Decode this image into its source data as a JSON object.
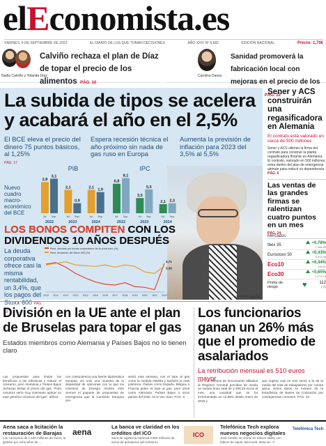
{
  "masthead": {
    "logo_pre": "el",
    "logo_red": "E",
    "logo_post": "conomista",
    "logo_tld": ".es",
    "date": "VIERNES, 9 DE SEPTIEMBRE DE 2022",
    "slogan": "EL DIARIO DE LOS QUE TOMAN DECISIONES",
    "issue": "AÑO XXIV Nº 5.682",
    "edition": "EDICIÓN NACIONAL",
    "price": "Precio: 1,70€"
  },
  "teasers": [
    {
      "caption": "Nadia Calviño y Yolanda Díaz",
      "headline": "Calviño rechaza el plan de Díaz de topar el precio de los alimentos",
      "page": "PÁG. 10"
    },
    {
      "caption": "Carolina Darias",
      "headline": "Sanidad promoverá la fabricación local con mejoras en el precio de los fármacos",
      "page": "PÁG. 12"
    }
  ],
  "main": {
    "title": "La subida de tipos se acelera y acabará el año en el 2,5%",
    "subs": [
      {
        "text": "El BCE eleva el precio del dinero 75 puntos básicos, al 1,25%",
        "page": "PÁG. 17"
      },
      {
        "text": "Espera recesión técnica el año próximo sin nada de gas ruso en Europa",
        "page": ""
      },
      {
        "text": "Aumenta la previsión de inflación para 2023 del 3,5% al 5,5%",
        "page": ""
      }
    ],
    "macro_label": "Nuevo cuadro macro-económico del BCE",
    "bonos_title_a": "LOS BONOS COMPITEN",
    "bonos_title_b": " CON LOS DIVIDENDOS 10 AÑOS DESPUÉS",
    "bonos_text": "La deuda corporativa ofrece casi la misma rentabilidad, un 3,4%, que los pagos del Stoxx 600",
    "bonos_page": "PÁG. 19",
    "photo_credit": "Christine Lagarde"
  },
  "chart_data": [
    {
      "type": "bar",
      "title": "PIB",
      "categories": [
        "2022",
        "2023",
        "2024"
      ],
      "series": [
        {
          "name": "Jul.",
          "values": [
            2.8,
            2.1,
            2.1
          ]
        },
        {
          "name": "Sep.",
          "values": [
            3.1,
            0.9,
            1.9
          ]
        }
      ],
      "tick_labels": [
        "Jul.",
        "Sep.",
        "Jul.",
        "Sep.",
        "Jul.",
        "Sep."
      ]
    },
    {
      "type": "bar",
      "title": "IPC",
      "categories": [
        "2022",
        "2023",
        "2024"
      ],
      "series": [
        {
          "name": "Jul.",
          "values": [
            6.8,
            3.5,
            2.1
          ]
        },
        {
          "name": "Sep.",
          "values": [
            8.1,
            5.5,
            2.3
          ]
        }
      ],
      "tick_labels": [
        "Jul.",
        "Sep.",
        "Jul.",
        "Sep.",
        "Jul.",
        "Sep."
      ]
    },
    {
      "type": "line",
      "title": "",
      "x": [
        "2010",
        "2011",
        "2012",
        "2013",
        "2014",
        "2015",
        "2016",
        "2017",
        "2018",
        "2019",
        "2020",
        "2021",
        "2022"
      ],
      "series": [
        {
          "name": "Rent. ofrecida por bonos corporativos de la zona euro (%)",
          "values": [
            3.6,
            3.8,
            3.2,
            2.4,
            1.8,
            1.3,
            1.0,
            0.9,
            1.2,
            0.7,
            0.6,
            0.3,
            3.71
          ]
        },
        {
          "name": "Rent. dividendo del Stoxx 600 (%)",
          "values": [
            3.5,
            3.7,
            3.9,
            3.5,
            3.4,
            3.3,
            3.5,
            3.2,
            3.5,
            3.3,
            2.6,
            2.4,
            3.36
          ]
        }
      ],
      "end_labels": [
        "3,71",
        "3,36"
      ]
    }
  ],
  "rightcol": {
    "story1_title": "Sener y ACS construirán una regasificadora en Alemania",
    "story1_sub": "El contrato está valorado en cerca de 500 millones",
    "story1_body": "Sener y ACS ultiman la firma del contrato para construir la planta regasificadora flotante en Alemania. El contrato, valorado en 500 millones, entra dentro del plan de emergencia alemán para reducir su dependencia.",
    "story1_page": "PÁG. 6",
    "story2_title": "Las ventas de las grandes firmas se ralentizan cuatro puntos en un mes",
    "story2_page": "PÁG. 24",
    "markets_title": "Mercados",
    "markets": [
      {
        "name": "Ibex 35",
        "change": "+0,78%",
        "value": "7.996,80"
      },
      {
        "name": "Eurostoxx 50",
        "change": "+0,43%",
        "value": "3.512,38"
      },
      {
        "name": "Eco10",
        "change": "+0,44%",
        "value": "116,61"
      },
      {
        "name": "Eco30",
        "change": "+0,65%",
        "value": "2.174,78"
      },
      {
        "name": "Prima de riesgo",
        "change": "112",
        "value": "(-3)"
      }
    ]
  },
  "lower": {
    "left_title": "División en la UE ante el plan de Bruselas para topar el gas",
    "left_sub": "Estados miembros como Alemania y Países Bajos no lo tienen claro",
    "left_body_1": "Las propuestas para limitar los beneficios a las eléctricas y reducir el consumo, pero Alemania y Países Bajos rechazan limitar el precio del gas. \"Para nosotros sería muy insensato aplicar un tope genérico al precio del gas\", afirmó",
    "left_body_2": "con contundencia una fuente diplomática europea. Es solo una muestra de la disparidad de opiniones con la que los ministros de Energía reciben este viernes el paquete de propuestas de emergencia que la Comisión Europea pre-",
    "left_body_3": "sentó esta semana, con el tope al gas como la medida estrella y también la más polémica. Países como España, Bélgica o Francia piden el tope al gas, pero otros como Alemania, Países Bajos u otros países del Este, no lo ven claro. PÁG. 5",
    "right_title": "Los funcionarios ganan un 26% más que el promedio de asalariados",
    "right_sub": "La retribución mensual es 510 euros mayor",
    "right_body_1": "Los 1,2 millones de funcionarios afiliados al Régimen General perciben de media un sueldo bruto total de 2.498,25 euros al mes, una cantidad que se ha incrementado un 12,85% desde enero de 2018 y",
    "right_body_2": "que supera casi en 510 euros a la de la media del total de trabajadores por cuenta ajena. Estos datos se extraen de la Estadística de Bases de Cotización por contingencias comunes. PÁG. 23"
  },
  "footer": [
    {
      "title": "Aena saca a licitación la restauración de Barajas",
      "body": "Los concursos de 1.100 millones de euros, la gestión por ocho años de ...",
      "logo": "aena"
    },
    {
      "title": "La banca ve claridad en los créditos del ICO",
      "body": "Saca de vigilancia especial 3.500 millones de euros de préstamos del Gobierno",
      "logo": "ICO"
    },
    {
      "title": "Telefónica Tech explora nuevos negocios digitales",
      "body": "José Cerdán se reunió en Silicon Valley con líderes de Apple, Microsoft, Meta etc. ©",
      "logo": "Telefónica Tech"
    }
  ],
  "colors": {
    "brand_red": "#c8102e",
    "main_bg": "#d6e7f3",
    "bar_dark": "#4a6f8a",
    "bar_light": "#e2a02f",
    "ipc_green": "#2e8b57",
    "positive": "#1a8a3a"
  }
}
